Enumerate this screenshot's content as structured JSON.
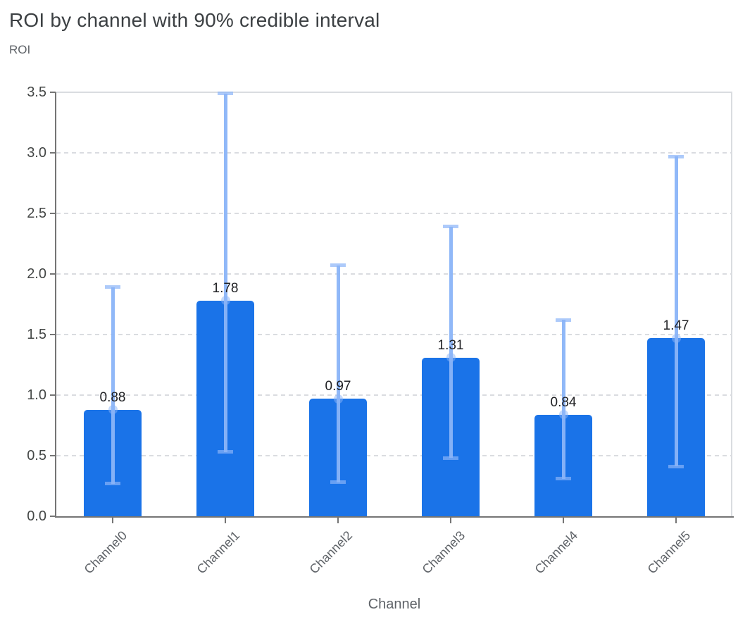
{
  "chart_data": {
    "type": "bar",
    "title": "ROI by channel with 90% credible interval",
    "xlabel": "Channel",
    "ylabel": "ROI",
    "categories": [
      "Channel0",
      "Channel1",
      "Channel2",
      "Channel3",
      "Channel4",
      "Channel5"
    ],
    "values": [
      0.88,
      1.78,
      0.97,
      1.31,
      0.84,
      1.47
    ],
    "value_labels": [
      "0.88",
      "1.78",
      "0.97",
      "1.31",
      "0.84",
      "1.47"
    ],
    "error_bars": {
      "label": "90% credible interval",
      "lower": [
        0.27,
        0.53,
        0.28,
        0.48,
        0.31,
        0.41
      ],
      "upper": [
        1.89,
        3.49,
        2.07,
        2.39,
        1.62,
        2.97
      ]
    },
    "ylim": [
      0,
      3.5
    ],
    "y_ticks": [
      "0.0",
      "0.5",
      "1.0",
      "1.5",
      "2.0",
      "2.5",
      "3.0",
      "3.5"
    ],
    "grid": "horizontal-dashed",
    "legend": "none",
    "colors": {
      "bar": "#1A73E8",
      "error_bar": "#8AB4F8",
      "grid": "#DADCE0",
      "axis": "#757575",
      "title": "#3C4043",
      "axis_title": "#5F6368",
      "y_tick_label": "#444746",
      "x_tick_label": "#5F6368",
      "value_label": "#202124",
      "background": "#FFFFFF"
    }
  }
}
